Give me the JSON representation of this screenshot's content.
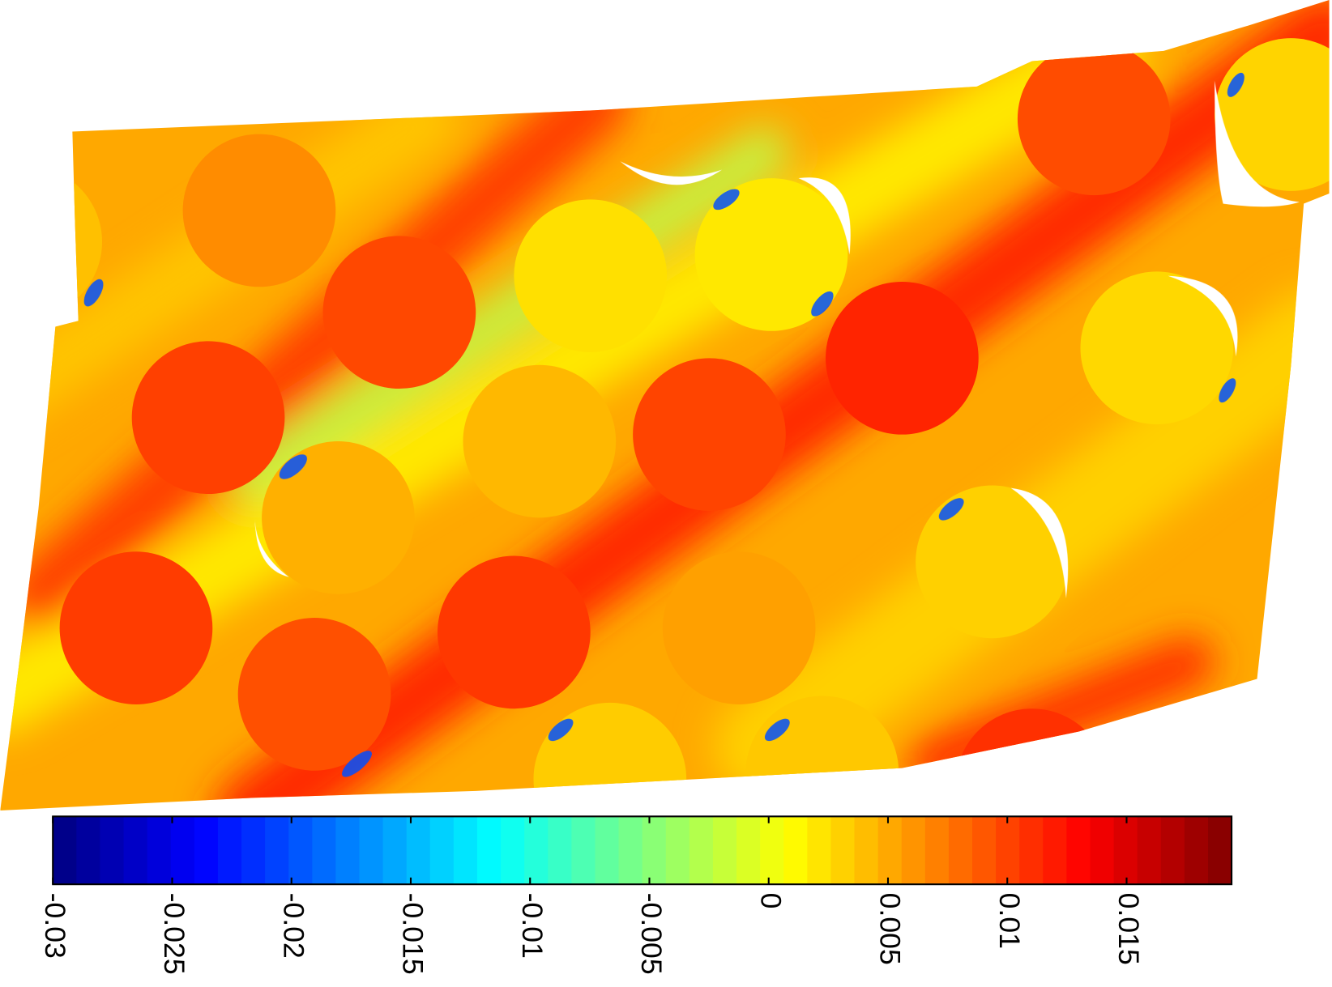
{
  "chart_data": {
    "type": "contour",
    "colormap": "jet",
    "clim": [
      -0.03,
      0.0194
    ],
    "cticks": [
      -0.03,
      -0.025,
      -0.02,
      -0.015,
      -0.01,
      -0.005,
      0,
      0.005,
      0.01,
      0.015
    ]
  }
}
